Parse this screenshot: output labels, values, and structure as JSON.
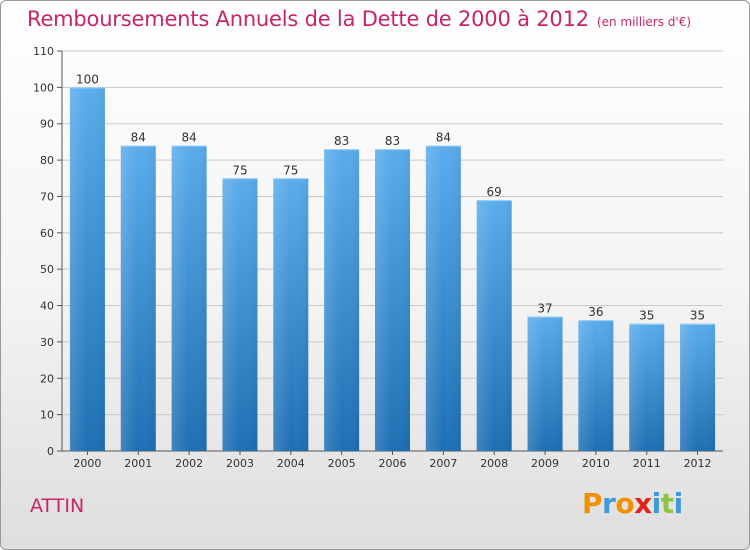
{
  "header": {
    "title": "Remboursements Annuels de la Dette de 2000 à 2012",
    "subtitle": "(en milliers d'€)"
  },
  "footer": {
    "commune": "ATTIN",
    "logo_text": "Proxiti"
  },
  "colors": {
    "bar_top": "#5aacec",
    "bar_bottom": "#1e6fb3",
    "accent": "#c8246c",
    "grid": "#c9c9c9",
    "logo_letters": [
      "#f29100",
      "#3e9ad6",
      "#f29100",
      "#e2231a",
      "#3e9ad6",
      "#8cc63e",
      "#3e9ad6"
    ]
  },
  "chart_data": {
    "type": "bar",
    "title": "Remboursements Annuels de la Dette de 2000 à 2012",
    "subtitle": "(en milliers d'€)",
    "categories": [
      "2000",
      "2001",
      "2002",
      "2003",
      "2004",
      "2005",
      "2006",
      "2007",
      "2008",
      "2009",
      "2010",
      "2011",
      "2012"
    ],
    "values": [
      100,
      84,
      84,
      75,
      75,
      83,
      83,
      84,
      69,
      37,
      36,
      35,
      35
    ],
    "ylim": [
      0,
      110
    ],
    "yticks": [
      0,
      10,
      20,
      30,
      40,
      50,
      60,
      70,
      80,
      90,
      100,
      110
    ],
    "grid": true,
    "legend": "none"
  }
}
